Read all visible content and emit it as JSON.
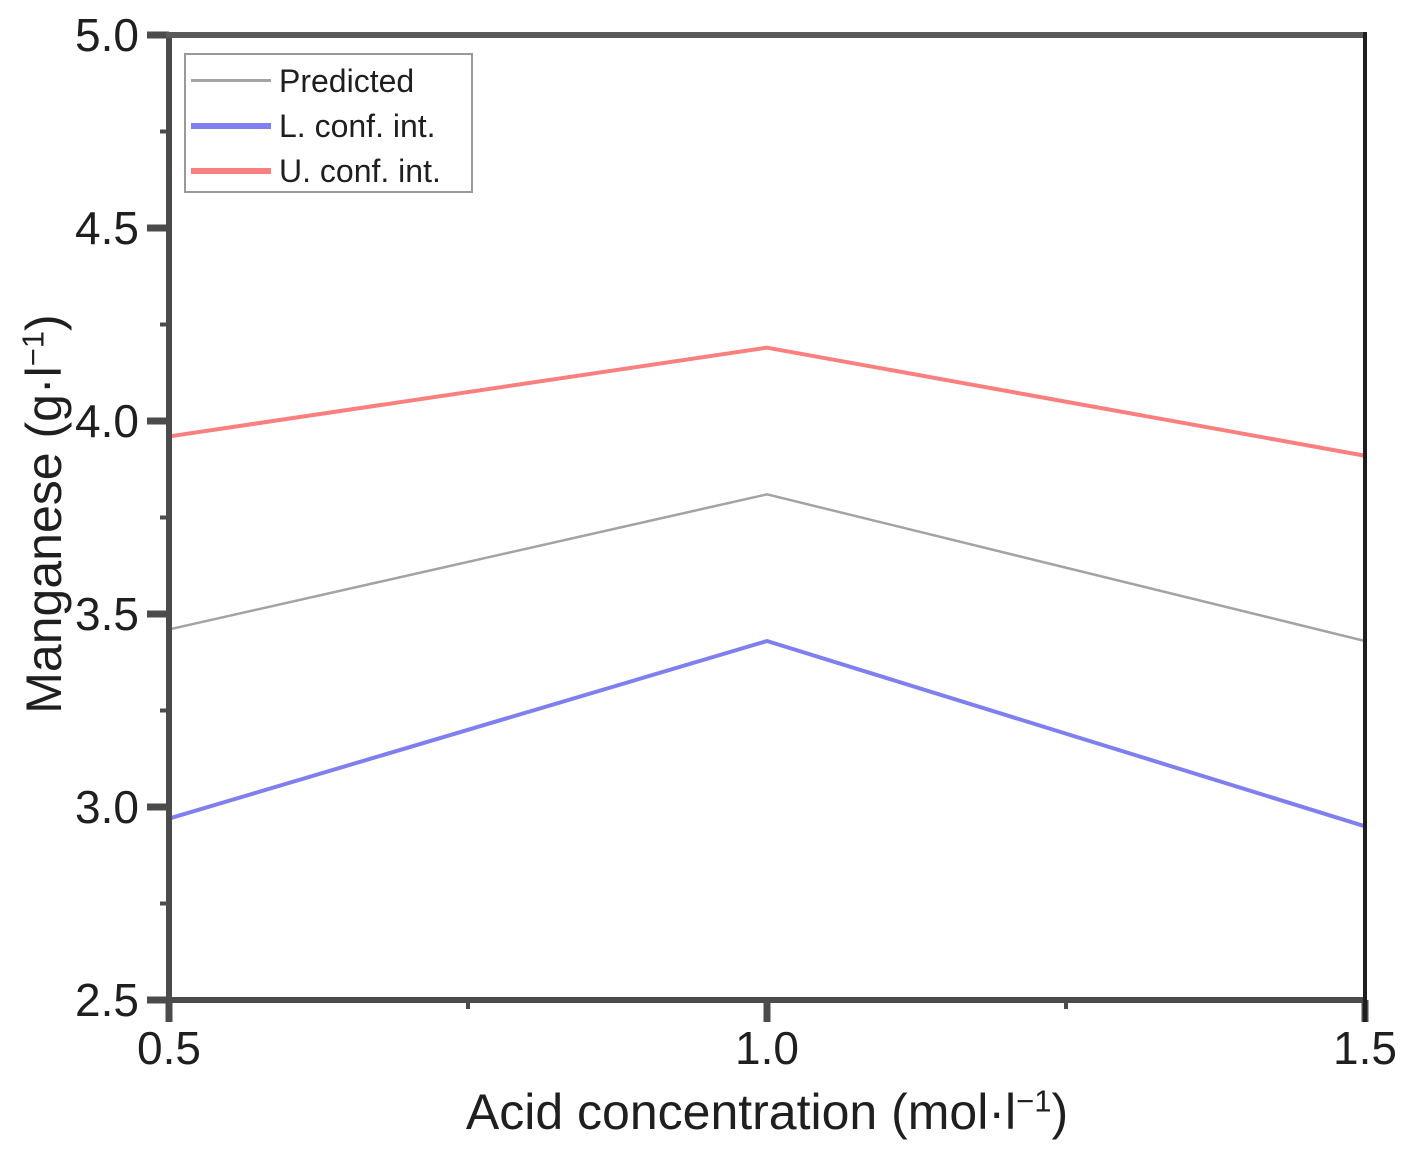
{
  "chart_data": {
    "type": "line",
    "title": "",
    "x": [
      0.5,
      1.0,
      1.5
    ],
    "series": [
      {
        "name": "Predicted",
        "values": [
          3.46,
          3.81,
          3.43
        ],
        "color": "#a3a3a3",
        "stroke_width": 2.5,
        "swatch_height": 3
      },
      {
        "name": "L. conf. int.",
        "values": [
          2.97,
          3.43,
          2.95
        ],
        "color": "#7f7ff0",
        "stroke_width": 4,
        "swatch_height": 6
      },
      {
        "name": "U. conf. int.",
        "values": [
          3.96,
          4.19,
          3.91
        ],
        "color": "#fa7f7f",
        "stroke_width": 4,
        "swatch_height": 6
      }
    ],
    "xlabel": {
      "base": "Acid concentration (mol·l",
      "sup": "−1",
      "end": ")"
    },
    "ylabel": {
      "base": "Manganese (g·l",
      "sup": "−1",
      "end": ")"
    },
    "xlim": [
      0.5,
      1.5
    ],
    "ylim": [
      2.5,
      5.0
    ],
    "xticks": {
      "major": [
        0.5,
        1.0,
        1.5
      ],
      "minor": [
        0.75,
        1.25
      ],
      "labels": [
        "0.5",
        "1.0",
        "1.5"
      ]
    },
    "yticks": {
      "major": [
        2.5,
        3.0,
        3.5,
        4.0,
        4.5,
        5.0
      ],
      "minor": [
        2.75,
        3.25,
        3.75,
        4.25,
        4.75
      ],
      "labels": [
        "2.5",
        "3.0",
        "3.5",
        "4.0",
        "4.5",
        "5.0"
      ]
    },
    "grid": false,
    "legend": {
      "position": "top-left",
      "entries": [
        "Predicted",
        "L. conf. int.",
        "U. conf. int."
      ]
    }
  },
  "style": {
    "background": "#ffffff",
    "frame_color": "#4b4b4b",
    "frame_top_color": "#5a5a5a",
    "frame_right_color": "#1e1e1e",
    "text_color": "#1f1f1f",
    "legend_border_color": "#999999"
  }
}
